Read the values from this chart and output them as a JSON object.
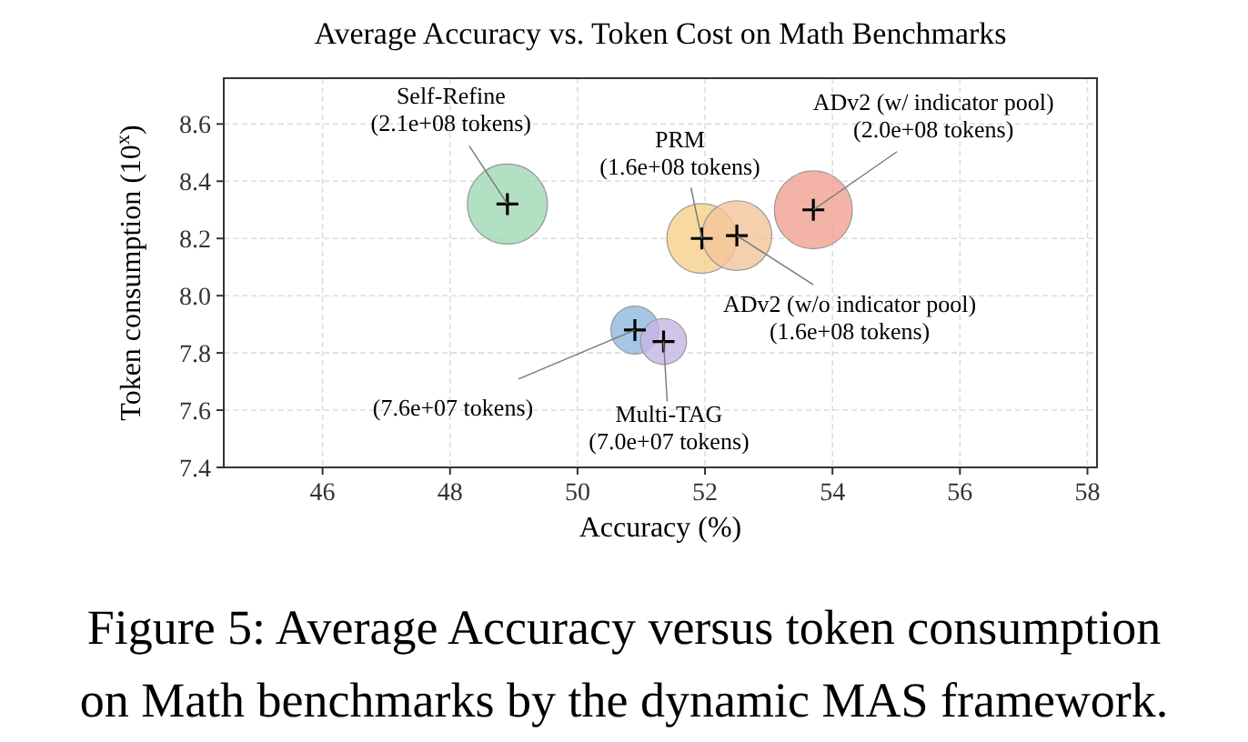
{
  "chart_data": {
    "type": "bubble",
    "title": "Average Accuracy vs. Token Cost on Math Benchmarks",
    "xlabel": "Accuracy (%)",
    "ylabel": "Token consumption (10$^{x}$)",
    "xlim": [
      44.45,
      58.15
    ],
    "xticks": [
      46,
      48,
      50,
      52,
      54,
      56,
      58
    ],
    "ylim": [
      7.4,
      8.76
    ],
    "yticks": [
      7.4,
      7.6,
      7.8,
      {
        "value": 8,
        "label": "8.0"
      },
      8.2,
      8.4,
      8.6
    ],
    "grid": true,
    "series": [
      {
        "name": "Self-Refine",
        "color": "#9fd8b4",
        "x": [
          48.9
        ],
        "values": [
          8.32
        ],
        "sizes": [
          1
        ],
        "value_labels": [
          "(2.1e+08 tokens)"
        ]
      },
      {
        "name": "PRM",
        "color": "#f5d08a",
        "x": [
          51.95
        ],
        "values": [
          8.2
        ],
        "sizes": [
          0.76
        ],
        "value_labels": [
          "(1.6e+08 tokens)"
        ]
      },
      {
        "name": "ADv2 (w/ indicator pool)",
        "color": "#f0a091",
        "x": [
          53.7
        ],
        "values": [
          8.3
        ],
        "sizes": [
          0.95
        ],
        "value_labels": [
          "(2.0e+08 tokens)"
        ]
      },
      {
        "name": "ADv2 (w/o indicator pool)",
        "color": "#f2c49b",
        "x": [
          52.5
        ],
        "values": [
          8.21
        ],
        "sizes": [
          0.76
        ],
        "value_labels": [
          "(1.6e+08 tokens)"
        ]
      },
      {
        "color": "#8fb8de",
        "x": [
          50.9
        ],
        "values": [
          7.88
        ],
        "sizes": [
          0.36
        ],
        "value_labels": [
          "(7.6e+07 tokens)"
        ]
      },
      {
        "name": "Multi-TAG",
        "color": "#c4b5e6",
        "x": [
          51.35
        ],
        "values": [
          7.84
        ],
        "sizes": [
          0.33
        ],
        "value_labels": [
          "(7.0e+07 tokens)"
        ]
      }
    ],
    "annotations": [
      "Figure 5: Average Accuracy versus token consumption on Math benchmarks by the dynamic MAS framework."
    ]
  }
}
